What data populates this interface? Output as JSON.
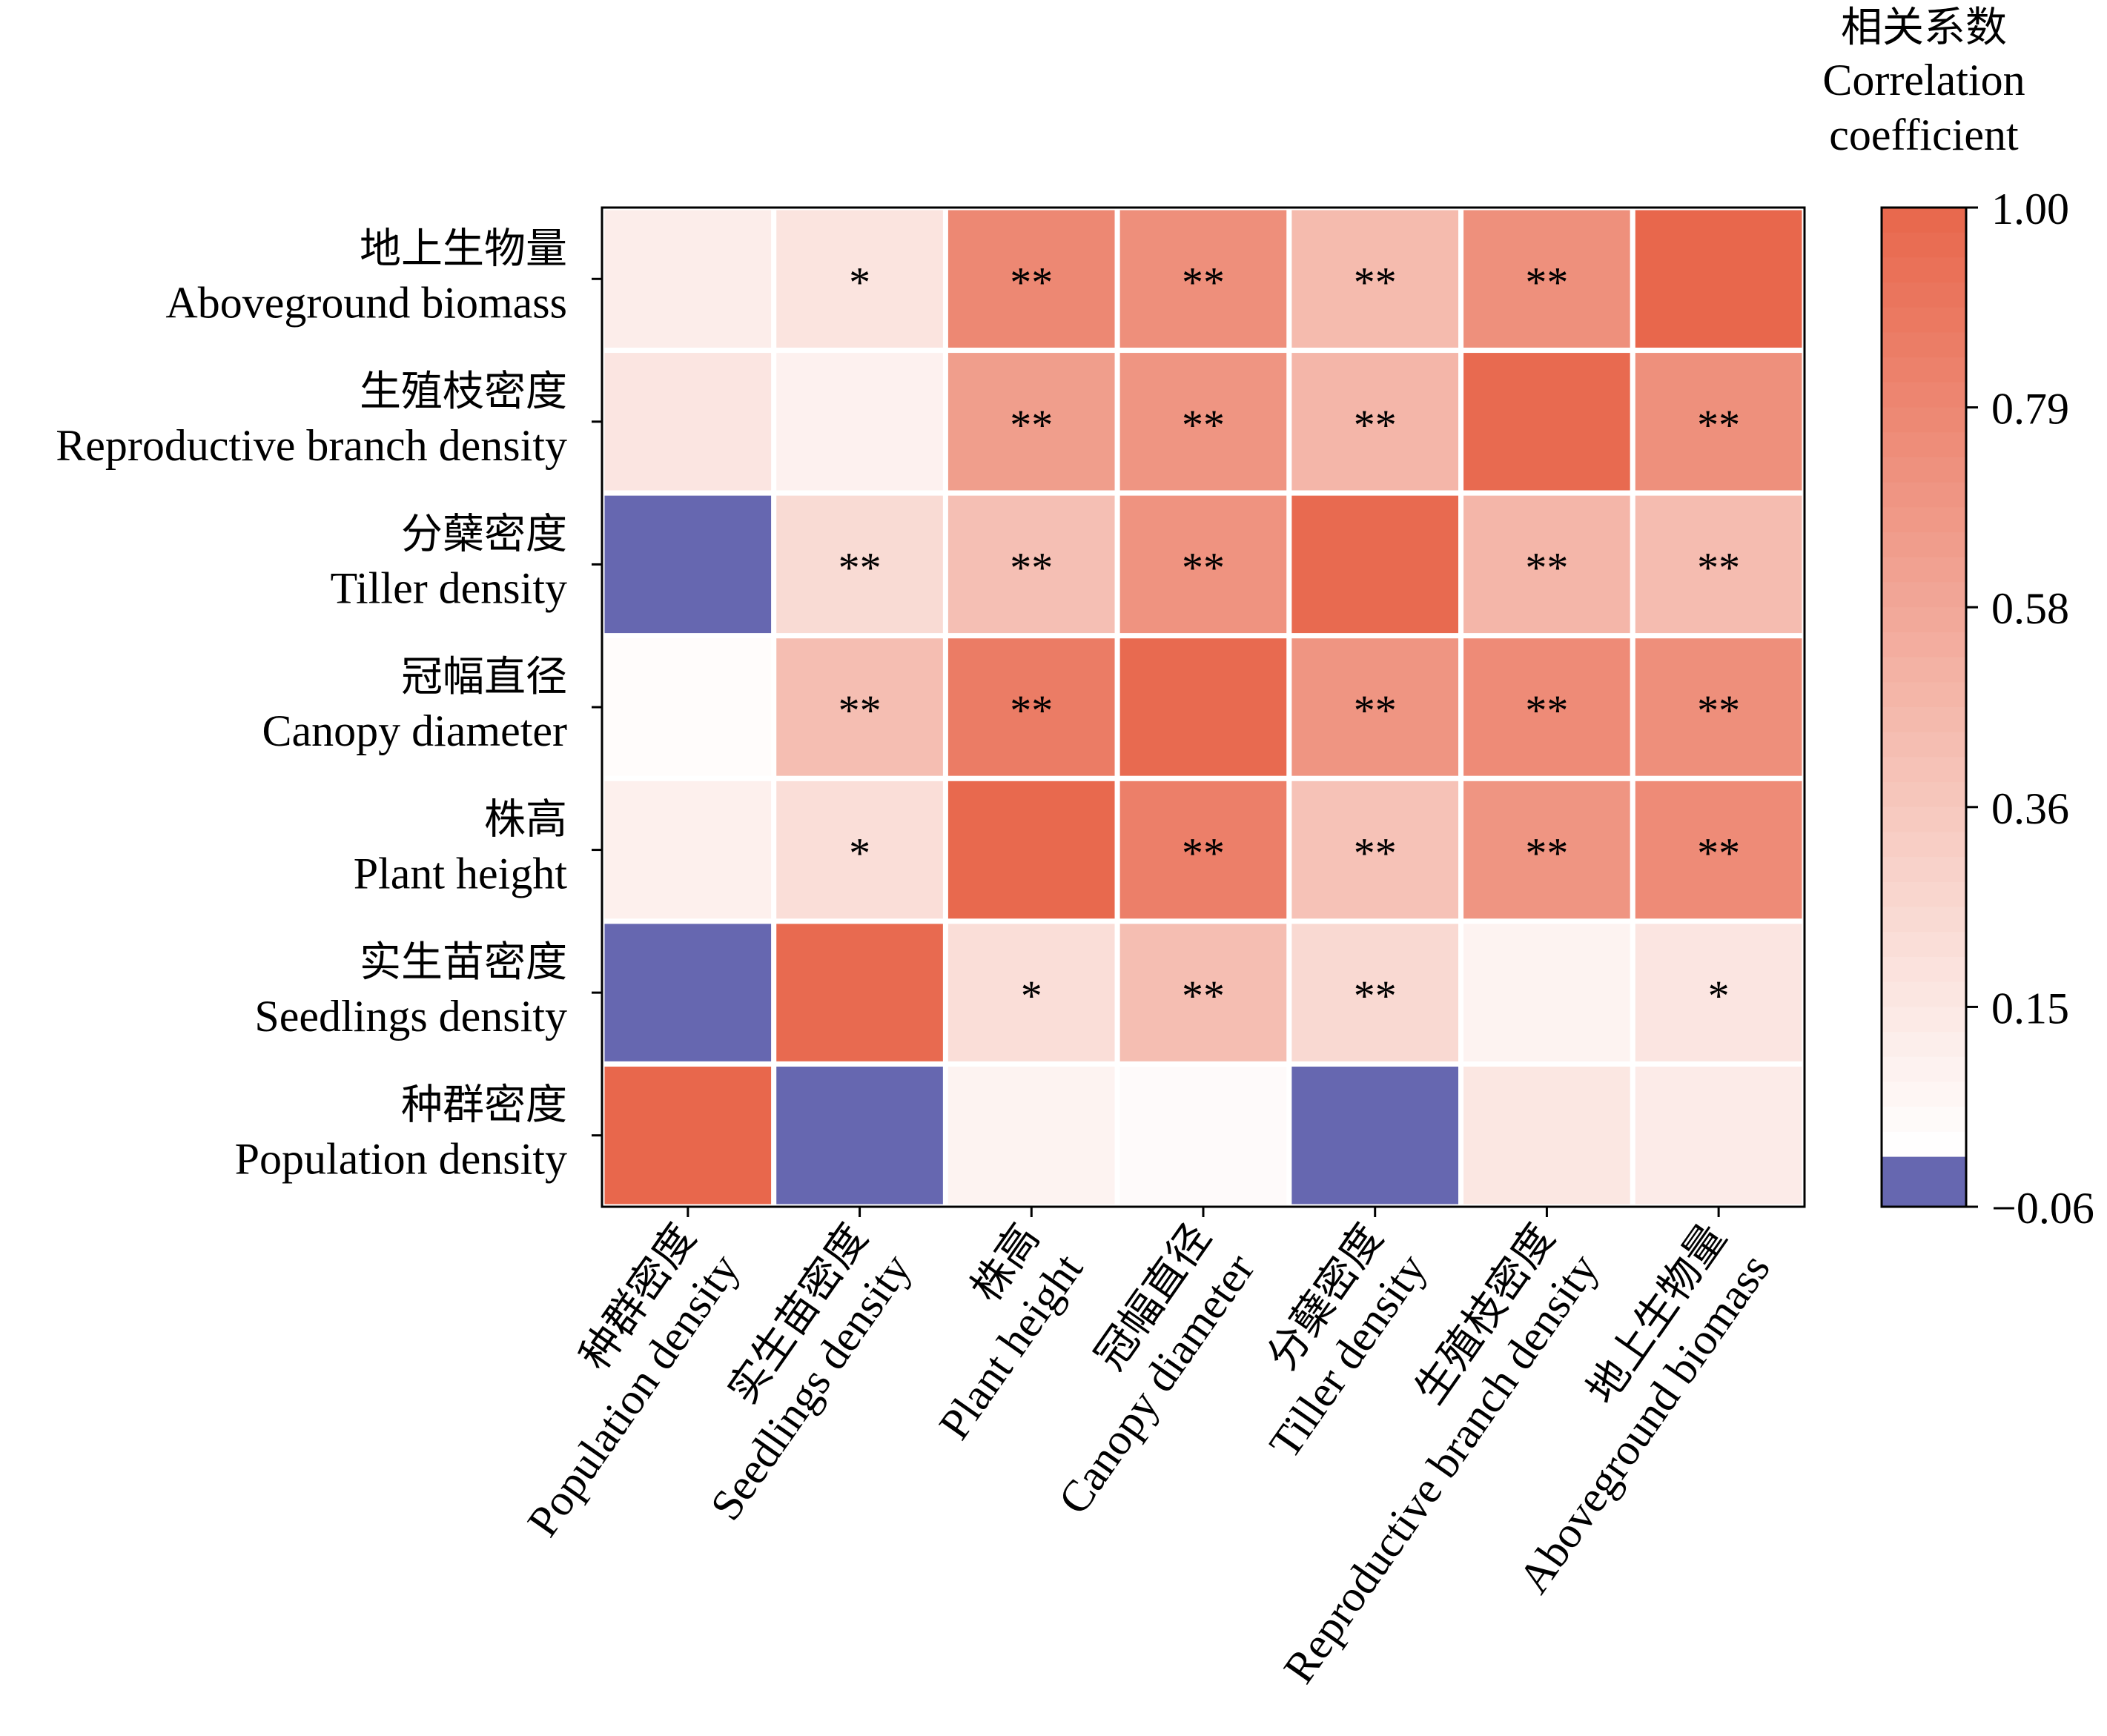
{
  "chart_data": {
    "type": "heatmap",
    "x_categories": [
      {
        "zh": "种群密度",
        "en": "Population density"
      },
      {
        "zh": "实生苗密度",
        "en": "Seedlings density"
      },
      {
        "zh": "株高",
        "en": "Plant height"
      },
      {
        "zh": "冠幅直径",
        "en": "Canopy diameter"
      },
      {
        "zh": "分蘖密度",
        "en": "Tiller density"
      },
      {
        "zh": "生殖枝密度",
        "en": "Reproductive branch density"
      },
      {
        "zh": "地上生物量",
        "en": "Aboveground biomass"
      }
    ],
    "y_categories": [
      {
        "zh": "地上生物量",
        "en": "Aboveground biomass"
      },
      {
        "zh": "生殖枝密度",
        "en": "Reproductive branch density"
      },
      {
        "zh": "分蘖密度",
        "en": "Tiller density"
      },
      {
        "zh": "冠幅直径",
        "en": "Canopy diameter"
      },
      {
        "zh": "株高",
        "en": "Plant height"
      },
      {
        "zh": "实生苗密度",
        "en": "Seedlings density"
      },
      {
        "zh": "种群密度",
        "en": "Population density"
      }
    ],
    "values": [
      [
        0.12,
        0.18,
        0.78,
        0.74,
        0.45,
        0.73,
        1.0
      ],
      [
        0.17,
        0.09,
        0.64,
        0.7,
        0.48,
        0.98,
        0.73
      ],
      [
        -0.06,
        0.24,
        0.42,
        0.71,
        0.98,
        0.48,
        0.44
      ],
      [
        0.02,
        0.43,
        0.86,
        0.98,
        0.7,
        0.76,
        0.74
      ],
      [
        0.1,
        0.22,
        0.99,
        0.84,
        0.4,
        0.7,
        0.76
      ],
      [
        -0.06,
        0.98,
        0.22,
        0.43,
        0.25,
        0.08,
        0.17
      ],
      [
        1.0,
        -0.06,
        0.08,
        0.03,
        -0.06,
        0.16,
        0.13
      ]
    ],
    "significance": [
      [
        "",
        "*",
        "**",
        "**",
        "**",
        "**",
        ""
      ],
      [
        "",
        "",
        "**",
        "**",
        "**",
        "",
        "**"
      ],
      [
        "",
        "**",
        "**",
        "**",
        "",
        "**",
        "**"
      ],
      [
        "",
        "**",
        "**",
        "",
        "**",
        "**",
        "**"
      ],
      [
        "",
        "*",
        "",
        "**",
        "**",
        "**",
        "**"
      ],
      [
        "",
        "",
        "*",
        "**",
        "**",
        "",
        "*"
      ],
      [
        "",
        "",
        "",
        "",
        "",
        "",
        ""
      ]
    ],
    "colorbar": {
      "title_zh": "相关系数",
      "title_en": [
        "Correlation",
        "coefficient"
      ],
      "ticks": [
        "1.00",
        "0.79",
        "0.58",
        "0.36",
        "0.15",
        "−0.06"
      ],
      "range": [
        -0.06,
        1.0
      ],
      "color_low": "#6667b0",
      "color_zero": "#ffffff",
      "color_high": "#e8674c"
    }
  }
}
